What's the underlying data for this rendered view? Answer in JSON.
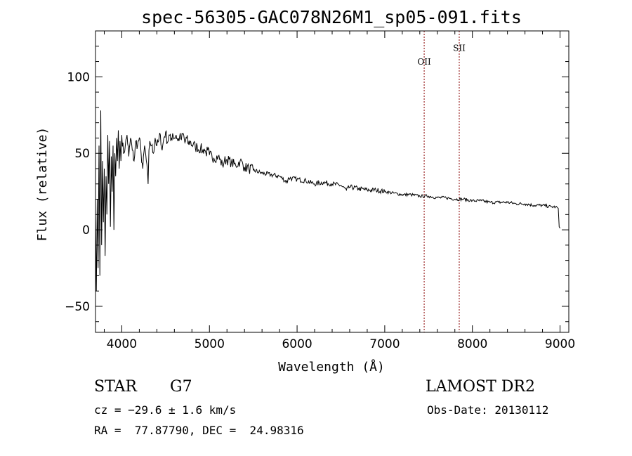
{
  "chart_data": {
    "type": "line",
    "title": "spec-56305-GAC078N26M1_sp05-091.fits",
    "xlabel": "Wavelength (Å)",
    "ylabel": "Flux (relative)",
    "xlim": [
      3700,
      9100
    ],
    "ylim": [
      -67,
      130
    ],
    "x_ticks": [
      4000,
      5000,
      6000,
      7000,
      8000,
      9000
    ],
    "y_ticks": [
      -50,
      0,
      50,
      100
    ],
    "grid": false,
    "series": [
      {
        "x": [
          3700,
          3710,
          3720,
          3730,
          3740,
          3750,
          3760,
          3770,
          3780,
          3790,
          3800,
          3810,
          3820,
          3830,
          3840,
          3850,
          3860,
          3870,
          3880,
          3890,
          3900,
          3910,
          3920,
          3930,
          3940,
          3950,
          3960,
          3970,
          3980,
          3990,
          4000,
          4020,
          4040,
          4060,
          4080,
          4100,
          4120,
          4140,
          4160,
          4180,
          4200,
          4220,
          4240,
          4260,
          4280,
          4300,
          4310,
          4320,
          4340,
          4360,
          4380,
          4400,
          4420,
          4440,
          4460,
          4480,
          4500,
          4520,
          4540,
          4560,
          4580,
          4600,
          4620,
          4640,
          4660,
          4680,
          4700,
          4720,
          4740,
          4760,
          4780,
          4800,
          4820,
          4840,
          4860,
          4880,
          4900,
          4920,
          4940,
          4960,
          4980,
          5000,
          5050,
          5100,
          5150,
          5170,
          5200,
          5250,
          5300,
          5350,
          5400,
          5450,
          5500,
          5600,
          5700,
          5800,
          5890,
          5900,
          6000,
          6100,
          6200,
          6300,
          6400,
          6500,
          6563,
          6600,
          6700,
          6800,
          6900,
          7000,
          7100,
          7200,
          7300,
          7400,
          7500,
          7600,
          7700,
          7800,
          7900,
          8000,
          8100,
          8200,
          8300,
          8400,
          8500,
          8600,
          8700,
          8800,
          8900,
          8950,
          8980,
          8990,
          9000
        ],
        "y": [
          10,
          -40,
          20,
          -25,
          55,
          -30,
          78,
          -10,
          45,
          5,
          40,
          -17,
          35,
          10,
          62,
          30,
          58,
          2,
          48,
          25,
          55,
          0,
          50,
          35,
          60,
          45,
          65,
          40,
          58,
          45,
          62,
          50,
          55,
          62,
          48,
          60,
          52,
          45,
          58,
          55,
          60,
          50,
          40,
          55,
          45,
          30,
          52,
          58,
          55,
          50,
          60,
          55,
          58,
          62,
          52,
          60,
          64,
          57,
          62,
          58,
          63,
          60,
          62,
          58,
          61,
          59,
          63,
          57,
          60,
          56,
          58,
          55,
          57,
          53,
          55,
          52,
          54,
          51,
          53,
          50,
          52,
          49,
          47,
          48,
          42,
          45,
          46,
          44,
          42,
          45,
          41,
          40,
          39,
          37,
          36,
          35,
          31,
          34,
          33,
          32,
          30,
          31,
          30,
          29,
          26,
          28,
          27,
          26,
          26,
          25,
          24,
          23,
          23,
          22,
          22,
          21,
          21,
          20,
          20,
          19,
          19,
          18,
          18,
          18,
          17,
          17,
          16,
          16,
          15,
          15,
          14,
          2,
          1
        ]
      }
    ],
    "annotations": [
      {
        "label": "OII",
        "x": 7450,
        "y": 108
      },
      {
        "label": "SII",
        "x": 7850,
        "y": 117
      }
    ]
  },
  "info": {
    "object_class": "STAR",
    "subclass": "G7",
    "survey": "LAMOST DR2",
    "cz": "cz = −29.6 ± 1.6 km/s",
    "obs_date": "Obs-Date: 20130112",
    "coords": "RA =  77.87790, DEC =  24.98316"
  }
}
